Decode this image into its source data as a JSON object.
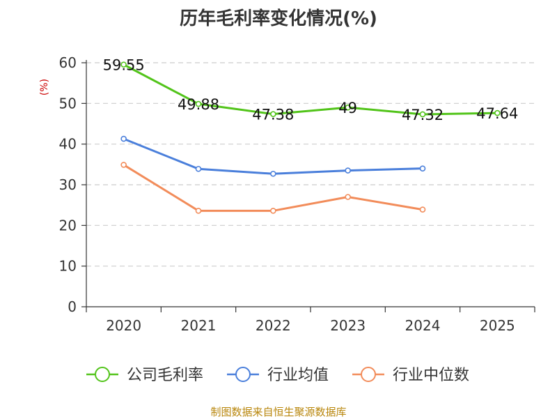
{
  "chart_data": {
    "type": "line",
    "title": "历年毛利率变化情况(%)",
    "ylabel": "(%)",
    "xlabel": "",
    "categories": [
      "2020",
      "2021",
      "2022",
      "2023",
      "2024",
      "2025"
    ],
    "ylim": [
      0,
      60
    ],
    "yticks": [
      0,
      10,
      20,
      30,
      40,
      50,
      60
    ],
    "grid": true,
    "legend_position": "bottom",
    "series": [
      {
        "name": "公司毛利率",
        "color": "#52c41a",
        "values": [
          59.55,
          49.88,
          47.38,
          49,
          47.32,
          47.64
        ],
        "labels": [
          "59.55",
          "49.88",
          "47.38",
          "49",
          "47.32",
          "47.64"
        ]
      },
      {
        "name": "行业均值",
        "color": "#4a7fdb",
        "values": [
          41.3,
          33.9,
          32.7,
          33.5,
          34.0,
          null
        ],
        "labels": null
      },
      {
        "name": "行业中位数",
        "color": "#f28c5a",
        "values": [
          34.9,
          23.6,
          23.6,
          27.0,
          23.9,
          null
        ],
        "labels": null
      }
    ]
  },
  "footer": {
    "source": "制图数据来自恒生聚源数据库"
  }
}
